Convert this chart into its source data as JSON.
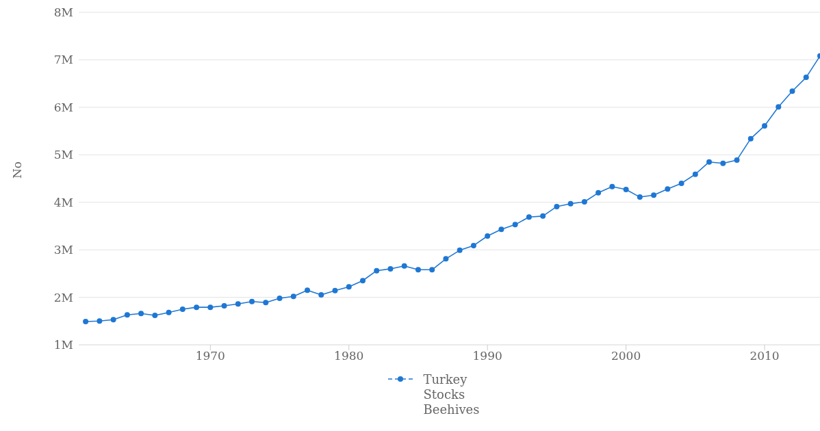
{
  "chart_data": {
    "type": "line",
    "ylabel": "No",
    "x": [
      1961,
      1962,
      1963,
      1964,
      1965,
      1966,
      1967,
      1968,
      1969,
      1970,
      1971,
      1972,
      1973,
      1974,
      1975,
      1976,
      1977,
      1978,
      1979,
      1980,
      1981,
      1982,
      1983,
      1984,
      1985,
      1986,
      1987,
      1988,
      1989,
      1990,
      1991,
      1992,
      1993,
      1994,
      1995,
      1996,
      1997,
      1998,
      1999,
      2000,
      2001,
      2002,
      2003,
      2004,
      2005,
      2006,
      2007,
      2008,
      2009,
      2010,
      2011,
      2012,
      2013,
      2014
    ],
    "series": [
      {
        "name": "Turkey Stocks Beehives",
        "color": "#1f77d4",
        "values": [
          1490000,
          1500000,
          1530000,
          1630000,
          1660000,
          1620000,
          1680000,
          1750000,
          1790000,
          1790000,
          1820000,
          1860000,
          1910000,
          1890000,
          1980000,
          2020000,
          2150000,
          2050000,
          2140000,
          2220000,
          2350000,
          2560000,
          2600000,
          2660000,
          2580000,
          2580000,
          2810000,
          2990000,
          3090000,
          3290000,
          3430000,
          3530000,
          3690000,
          3710000,
          3910000,
          3970000,
          4010000,
          4200000,
          4330000,
          4270000,
          4110000,
          4150000,
          4280000,
          4400000,
          4590000,
          4850000,
          4820000,
          4890000,
          5340000,
          5610000,
          6010000,
          6340000,
          6630000,
          7080000
        ]
      }
    ],
    "xlim": [
      1960.5,
      2014
    ],
    "xticks": [
      1970,
      1980,
      1990,
      2000,
      2010
    ],
    "ylim": [
      1000000,
      8000000
    ],
    "yticks": [
      {
        "value": 1000000,
        "label": "1M"
      },
      {
        "value": 2000000,
        "label": "2M"
      },
      {
        "value": 3000000,
        "label": "3M"
      },
      {
        "value": 4000000,
        "label": "4M"
      },
      {
        "value": 5000000,
        "label": "5M"
      },
      {
        "value": 6000000,
        "label": "6M"
      },
      {
        "value": 7000000,
        "label": "7M"
      },
      {
        "value": 8000000,
        "label": "8M"
      }
    ],
    "grid": "y",
    "legend": "bottom",
    "marker": "circle",
    "line_style": "solid"
  }
}
